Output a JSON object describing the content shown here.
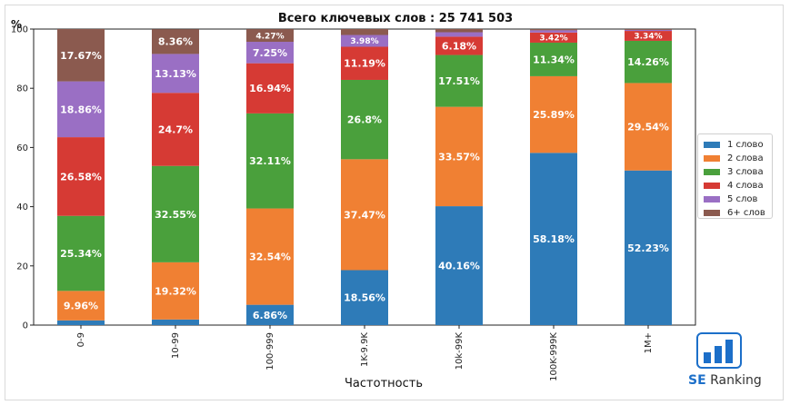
{
  "chart_data": {
    "type": "bar",
    "stacked": true,
    "title": "Всего ключевых слов : 25 741 503",
    "ylabel": "%",
    "xlabel": "Частотность",
    "ylim": [
      0,
      100
    ],
    "yticks": [
      0,
      20,
      40,
      60,
      80,
      100
    ],
    "categories": [
      "0-9",
      "10-99",
      "100-999",
      "1K-9.9K",
      "10k-99K",
      "100K-999K",
      "1M+"
    ],
    "series": [
      {
        "name": "1 слово",
        "color": "#2e7bb8",
        "values": [
          1.59,
          1.89,
          6.86,
          18.56,
          40.16,
          58.18,
          52.23
        ],
        "labels": [
          "",
          "",
          "6.86%",
          "18.56%",
          "40.16%",
          "58.18%",
          "52.23%"
        ]
      },
      {
        "name": "2 слова",
        "color": "#f08033",
        "values": [
          9.96,
          19.32,
          32.54,
          37.47,
          33.57,
          25.89,
          29.54
        ],
        "labels": [
          "9.96%",
          "19.32%",
          "32.54%",
          "37.47%",
          "33.57%",
          "25.89%",
          "29.54%"
        ]
      },
      {
        "name": "3 слова",
        "color": "#4aa03c",
        "values": [
          25.34,
          32.55,
          32.11,
          26.8,
          17.51,
          11.34,
          14.26
        ],
        "labels": [
          "25.34%",
          "32.55%",
          "32.11%",
          "26.8%",
          "17.51%",
          "11.34%",
          "14.26%"
        ]
      },
      {
        "name": "4 слова",
        "color": "#d63a34",
        "values": [
          26.58,
          24.7,
          16.94,
          11.19,
          6.18,
          3.42,
          3.34
        ],
        "labels": [
          "26.58%",
          "24.7%",
          "16.94%",
          "11.19%",
          "6.18%",
          "3.42%",
          "3.34%"
        ]
      },
      {
        "name": "5 слов",
        "color": "#9a6fc4",
        "values": [
          18.86,
          13.13,
          7.25,
          3.98,
          1.5,
          0.75,
          0.33
        ],
        "labels": [
          "18.86%",
          "13.13%",
          "7.25%",
          "3.98%",
          "",
          "",
          ""
        ]
      },
      {
        "name": "6+ слов",
        "color": "#8b5a4f",
        "values": [
          17.67,
          8.36,
          4.27,
          2.0,
          1.08,
          0.42,
          0.3
        ],
        "labels": [
          "17.67%",
          "8.36%",
          "4.27%",
          "",
          "",
          "",
          ""
        ]
      }
    ],
    "legend_position": "right",
    "grid": false
  },
  "brand": {
    "se": "SE",
    "name": "Ranking",
    "bar_color": "#1c6fc9"
  }
}
